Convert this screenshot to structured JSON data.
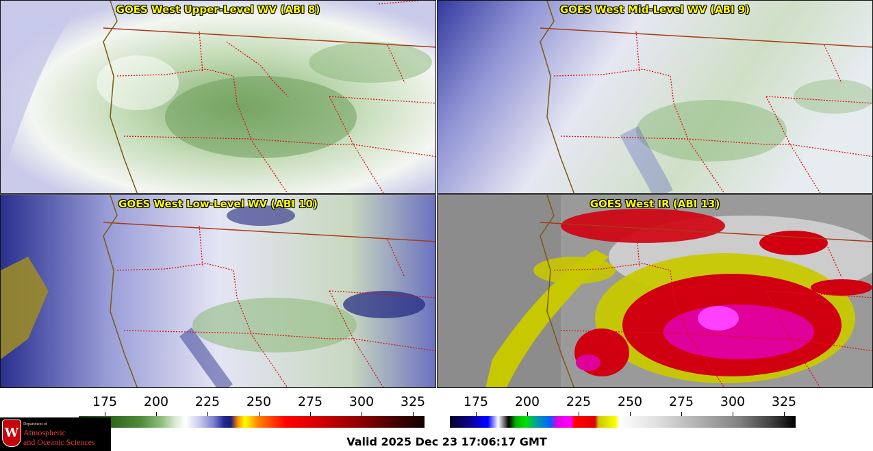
{
  "panels": [
    {
      "title": "GOES West Upper-Level WV (ABI 8)",
      "icon": "water-vapor-satellite-image"
    },
    {
      "title": "GOES West Mid-Level WV (ABI 9)",
      "icon": "water-vapor-satellite-image"
    },
    {
      "title": "GOES West Low-Level WV (ABI 10)",
      "icon": "water-vapor-satellite-image"
    },
    {
      "title": "GOES West IR (ABI 13)",
      "icon": "infrared-satellite-image"
    }
  ],
  "colorbar_wv": {
    "ticks": [
      "175",
      "200",
      "225",
      "250",
      "275",
      "300",
      "325"
    ]
  },
  "colorbar_ir": {
    "ticks": [
      "175",
      "200",
      "225",
      "250",
      "275",
      "300",
      "325"
    ]
  },
  "logo": {
    "dept": "Department of",
    "line1": "Atmospheric",
    "line2": "and Oceanic Sciences",
    "crest": "W"
  },
  "valid_time": "Valid 2025 Dec 23 17:06:17 GMT",
  "colors": {
    "border_state": "#dd1111",
    "border_country": "#a83a14",
    "coastline": "#7a5a10",
    "title_text": "#ffff00"
  }
}
